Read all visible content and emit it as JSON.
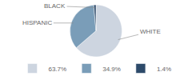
{
  "chart_data": {
    "type": "pie",
    "categories": [
      "WHITE",
      "HISPANIC",
      "BLACK"
    ],
    "values": [
      63.7,
      34.9,
      1.4
    ],
    "value_labels": [
      "63.7%",
      "34.9%",
      "1.4%"
    ],
    "colors": [
      "#cdd5e0",
      "#7a9db8",
      "#2d4a6a"
    ],
    "legend": "bottom"
  }
}
